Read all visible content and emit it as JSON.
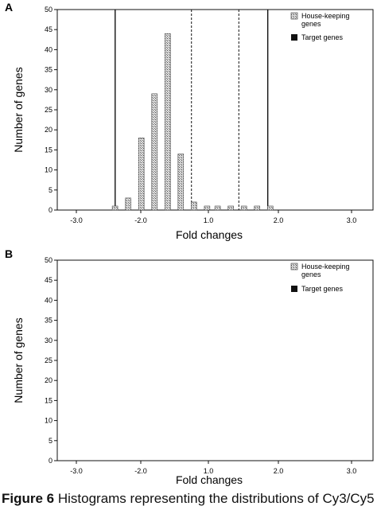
{
  "caption": {
    "label": "Figure 6",
    "text": " Histograms representing the distributions of Cy3/Cy5"
  },
  "chart_data": [
    {
      "panel": "A",
      "type": "bar",
      "xlabel": "Fold changes",
      "ylabel": "Number of genes",
      "xlim": [
        -3.0,
        3.0
      ],
      "ylim": [
        0,
        50
      ],
      "xticks": [
        "-3.0",
        "-2.0",
        "1.0",
        "2.0",
        "3.0"
      ],
      "yticks": [
        0,
        5,
        10,
        15,
        20,
        25,
        30,
        35,
        40,
        45,
        50
      ],
      "legend_position": "top-right",
      "series": [
        {
          "name": "House-keeping genes",
          "color": "#9a9a9a",
          "pattern": "stipple",
          "x": [
            -1.85,
            -1.6,
            -1.35,
            -1.1,
            -0.85,
            -0.6,
            -0.35,
            -0.1,
            0.1,
            0.35,
            0.6,
            0.85,
            1.1
          ],
          "values": [
            1,
            3,
            18,
            29,
            44,
            14,
            2,
            1,
            1,
            1,
            1,
            1,
            1
          ]
        },
        {
          "name": "Target genes",
          "color": "#111111",
          "x": [],
          "values": []
        }
      ],
      "vlines": [
        {
          "x": -1.9,
          "style": "solid"
        },
        {
          "x": -0.45,
          "style": "dashed"
        },
        {
          "x": 0.45,
          "style": "dashed"
        },
        {
          "x": 1.0,
          "style": "solid"
        }
      ]
    },
    {
      "panel": "B",
      "type": "bar",
      "xlabel": "Fold changes",
      "ylabel": "Number of genes",
      "xlim": [
        -3.0,
        3.0
      ],
      "ylim": [
        0,
        50
      ],
      "xticks": [
        "-3.0",
        "-2.0",
        "1.0",
        "2.0",
        "3.0"
      ],
      "yticks": [
        0,
        5,
        10,
        15,
        20,
        25,
        30,
        35,
        40,
        45,
        50
      ],
      "legend_position": "top-right",
      "series": [
        {
          "name": "House-keeping genes",
          "color": "#9a9a9a",
          "pattern": "stipple"
        },
        {
          "name": "Target genes",
          "color": "#111111"
        }
      ]
    }
  ]
}
